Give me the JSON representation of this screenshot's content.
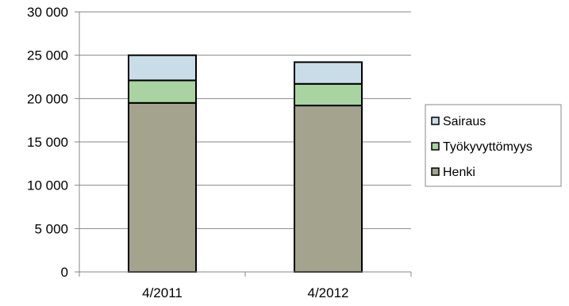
{
  "chart_data": {
    "type": "bar",
    "stacked": true,
    "categories": [
      "4/2011",
      "4/2012"
    ],
    "series": [
      {
        "name": "Henki",
        "values": [
          19500,
          19200
        ],
        "color": "#a3a38e"
      },
      {
        "name": "Työkyvyttömyys",
        "values": [
          2600,
          2500
        ],
        "color": "#a9d3a0"
      },
      {
        "name": "Sairaus",
        "values": [
          2900,
          2500
        ],
        "color": "#c9dde8"
      }
    ],
    "y_ticks": [
      "0",
      "5 000",
      "10 000",
      "15 000",
      "20 000",
      "25 000",
      "30 000"
    ],
    "ylim": [
      0,
      30000
    ],
    "grid": true,
    "legend_position": "right",
    "legend_order": [
      "Sairaus",
      "Työkyvyttömyys",
      "Henki"
    ]
  }
}
